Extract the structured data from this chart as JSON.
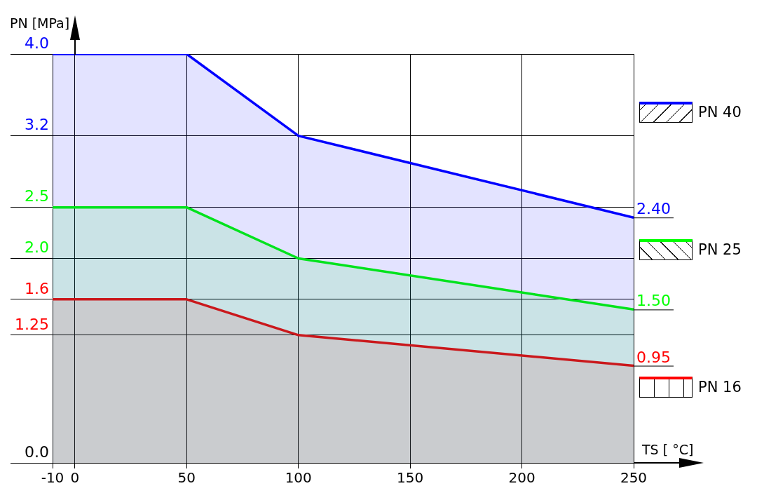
{
  "chart_data": {
    "type": "area",
    "xlabel": "TS [ °C]",
    "ylabel": "PN [MPa]",
    "x": [
      -10,
      50,
      100,
      250
    ],
    "series": [
      {
        "name": "PN 40",
        "color": "#0000ff",
        "values": [
          4.0,
          4.0,
          3.2,
          2.4
        ],
        "value_labels": [
          null,
          null,
          null,
          "2.40"
        ]
      },
      {
        "name": "PN 25",
        "color": "#00ff00",
        "values": [
          2.5,
          2.5,
          2.0,
          1.5
        ],
        "value_labels": [
          null,
          null,
          null,
          "1.50"
        ]
      },
      {
        "name": "PN 16",
        "color": "#ff0000",
        "values": [
          1.6,
          1.6,
          1.25,
          0.95
        ],
        "value_labels": [
          null,
          null,
          null,
          "0.95"
        ]
      }
    ],
    "xlim": [
      -10,
      250
    ],
    "xticks": [
      -10,
      0,
      50,
      100,
      150,
      200,
      250
    ],
    "ylim": [
      0,
      4.0
    ],
    "yticks": [
      {
        "value": 0,
        "label": "0.0"
      },
      1.25,
      1.6,
      {
        "value": 2,
        "label": "2.0"
      },
      2.5,
      3.2,
      {
        "value": 4,
        "label": "4.0"
      }
    ],
    "grid": true,
    "legend": "right",
    "marker": "none",
    "line_style": "solid"
  }
}
